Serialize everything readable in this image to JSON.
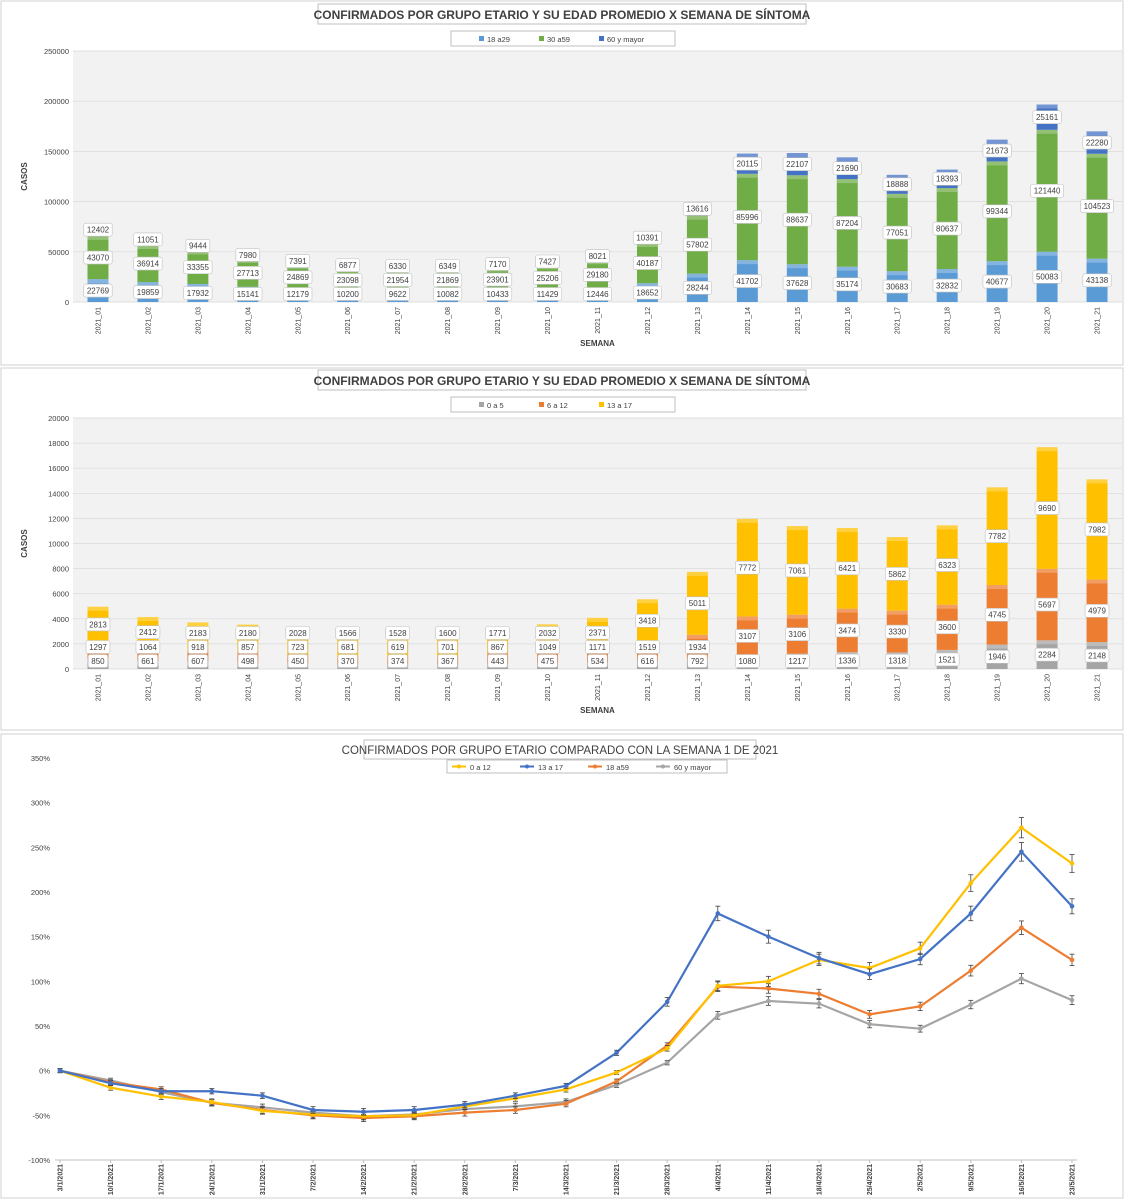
{
  "chart_data": [
    {
      "type": "bar",
      "stacked": true,
      "title": "CONFIRMADOS POR GRUPO ETARIO Y SU EDAD PROMEDIO X SEMANA DE SÍNTOMA",
      "xlabel": "SEMANA",
      "ylabel": "CASOS",
      "ylim": [
        0,
        250000
      ],
      "yticks": [
        "0",
        "50000",
        "100000",
        "150000",
        "200000",
        "250000"
      ],
      "legend_position": "top",
      "grid": true,
      "categories": [
        "2021_01",
        "2021_02",
        "2021_03",
        "2021_04",
        "2021_05",
        "2021_06",
        "2021_07",
        "2021_08",
        "2021_09",
        "2021_10",
        "2021_11",
        "2021_12",
        "2021_13",
        "2021_14",
        "2021_15",
        "2021_16",
        "2021_17",
        "2021_18",
        "2021_19",
        "2021_20",
        "2021_21"
      ],
      "series": [
        {
          "name": "18 a29",
          "color": "#5b9bd5",
          "values": [
            22769,
            19859,
            17932,
            15141,
            12179,
            10200,
            9622,
            10082,
            10433,
            11429,
            12446,
            18652,
            28244,
            41702,
            37628,
            35174,
            30683,
            32832,
            40677,
            50083,
            43138
          ]
        },
        {
          "name": "30 a59",
          "color": "#70ad47",
          "values": [
            43070,
            36914,
            33355,
            27713,
            24869,
            23098,
            21954,
            21869,
            23901,
            25206,
            29180,
            40187,
            57802,
            85996,
            88637,
            87204,
            77051,
            80637,
            99344,
            121440,
            104523
          ]
        },
        {
          "name": "60 y mayor",
          "color": "#4472c4",
          "values": [
            12402,
            11051,
            9444,
            7980,
            7391,
            6877,
            6330,
            6349,
            7170,
            7427,
            8021,
            10391,
            13616,
            20115,
            22107,
            21690,
            18888,
            18393,
            21673,
            25161,
            22280
          ]
        }
      ]
    },
    {
      "type": "bar",
      "stacked": true,
      "title": "CONFIRMADOS POR GRUPO ETARIO Y SU EDAD PROMEDIO X SEMANA DE SÍNTOMA",
      "xlabel": "SEMANA",
      "ylabel": "CASOS",
      "ylim": [
        0,
        20000
      ],
      "yticks": [
        "0",
        "2000",
        "4000",
        "6000",
        "8000",
        "10000",
        "12000",
        "14000",
        "16000",
        "18000",
        "20000"
      ],
      "legend_position": "top",
      "grid": true,
      "categories": [
        "2021_01",
        "2021_02",
        "2021_03",
        "2021_04",
        "2021_05",
        "2021_06",
        "2021_07",
        "2021_08",
        "2021_09",
        "2021_10",
        "2021_11",
        "2021_12",
        "2021_13",
        "2021_14",
        "2021_15",
        "2021_16",
        "2021_17",
        "2021_18",
        "2021_19",
        "2021_20",
        "2021_21"
      ],
      "series": [
        {
          "name": "0 a 5",
          "color": "#a5a5a5",
          "values": [
            850,
            661,
            607,
            498,
            450,
            370,
            374,
            367,
            443,
            475,
            534,
            616,
            792,
            1080,
            1217,
            1336,
            1318,
            1521,
            1946,
            2284,
            2148
          ]
        },
        {
          "name": "6 a 12",
          "color": "#ed7d31",
          "values": [
            1297,
            1064,
            918,
            857,
            723,
            681,
            619,
            701,
            867,
            1049,
            1171,
            1519,
            1934,
            3107,
            3106,
            3474,
            3330,
            3600,
            4745,
            5697,
            4979
          ]
        },
        {
          "name": "13 a 17",
          "color": "#ffc000",
          "values": [
            2813,
            2412,
            2183,
            2180,
            2028,
            1566,
            1528,
            1600,
            1771,
            2032,
            2371,
            3418,
            5011,
            7772,
            7061,
            6421,
            5862,
            6323,
            7782,
            9690,
            7982
          ]
        }
      ]
    },
    {
      "type": "line",
      "title": "CONFIRMADOS POR GRUPO ETARIO COMPARADO CON LA SEMANA 1 DE 2021",
      "xlabel": "",
      "ylabel": "",
      "ylim": [
        -100,
        350
      ],
      "yticks": [
        "-100%",
        "-50%",
        "0%",
        "50%",
        "100%",
        "150%",
        "200%",
        "250%",
        "300%",
        "350%"
      ],
      "legend_position": "top",
      "grid": false,
      "x": [
        "3/1/2021",
        "10/1/2021",
        "17/1/2021",
        "24/1/2021",
        "31/1/2021",
        "7/2/2021",
        "14/2/2021",
        "21/2/2021",
        "28/2/2021",
        "7/3/2021",
        "14/3/2021",
        "21/3/2021",
        "28/3/2021",
        "4/4/2021",
        "11/4/2021",
        "18/4/2021",
        "25/4/2021",
        "2/5/2021",
        "9/5/2021",
        "16/5/2021",
        "23/5/2021"
      ],
      "series": [
        {
          "name": "0 a 12",
          "color": "#ffc000",
          "values": [
            0,
            -19,
            -29,
            -35,
            -45,
            -49,
            -51,
            -50,
            -40,
            -31,
            -21,
            -2,
            25,
            95,
            100,
            124,
            115,
            137,
            210,
            272,
            232
          ]
        },
        {
          "name": "13 a 17",
          "color": "#4472c4",
          "values": [
            0,
            -14,
            -23,
            -23,
            -28,
            -44,
            -46,
            -44,
            -38,
            -28,
            -17,
            20,
            77,
            176,
            150,
            126,
            108,
            125,
            176,
            245,
            184
          ]
        },
        {
          "name": "18 a59",
          "color": "#ed7d31",
          "values": [
            0,
            -13,
            -21,
            -36,
            -44,
            -50,
            -53,
            -51,
            -47,
            -44,
            -37,
            -12,
            28,
            94,
            92,
            86,
            63,
            72,
            112,
            160,
            124
          ]
        },
        {
          "name": "60 y mayor",
          "color": "#a5a5a5",
          "values": [
            0,
            -11,
            -24,
            -36,
            -41,
            -47,
            -51,
            -49,
            -43,
            -40,
            -35,
            -16,
            9,
            62,
            78,
            75,
            52,
            47,
            74,
            103,
            79
          ]
        }
      ]
    }
  ]
}
